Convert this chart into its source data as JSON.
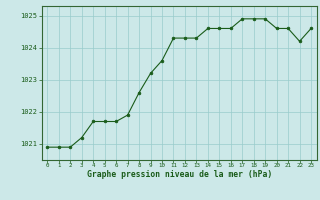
{
  "x": [
    0,
    1,
    2,
    3,
    4,
    5,
    6,
    7,
    8,
    9,
    10,
    11,
    12,
    13,
    14,
    15,
    16,
    17,
    18,
    19,
    20,
    21,
    22,
    23
  ],
  "y": [
    1020.9,
    1020.9,
    1020.9,
    1021.2,
    1021.7,
    1021.7,
    1021.7,
    1021.9,
    1022.6,
    1023.2,
    1023.6,
    1024.3,
    1024.3,
    1024.3,
    1024.6,
    1024.6,
    1024.6,
    1024.9,
    1024.9,
    1024.9,
    1024.6,
    1024.6,
    1024.2,
    1024.6
  ],
  "line_color": "#1a5c1a",
  "marker_color": "#1a5c1a",
  "bg_color": "#cce8e8",
  "grid_color": "#99cccc",
  "xlabel": "Graphe pression niveau de la mer (hPa)",
  "xlabel_color": "#1a5c1a",
  "tick_color": "#1a5c1a",
  "spine_color": "#336633",
  "ylim": [
    1020.5,
    1025.3
  ],
  "yticks": [
    1021,
    1022,
    1023,
    1024,
    1025
  ],
  "xticks": [
    0,
    1,
    2,
    3,
    4,
    5,
    6,
    7,
    8,
    9,
    10,
    11,
    12,
    13,
    14,
    15,
    16,
    17,
    18,
    19,
    20,
    21,
    22,
    23
  ]
}
